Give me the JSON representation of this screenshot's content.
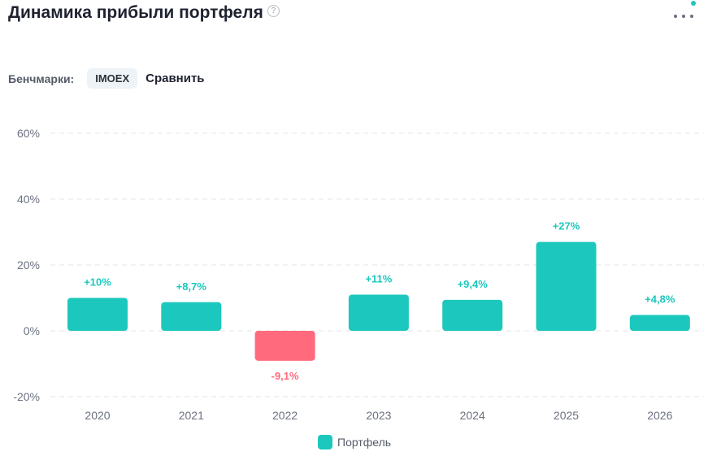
{
  "header": {
    "title": "Динамика прибыли портфеля",
    "help_glyph": "?"
  },
  "benchmarks": {
    "label": "Бенчмарки:",
    "chip": "IMOEX",
    "compare": "Сравнить"
  },
  "colors": {
    "positive": "#1cc8bd",
    "negative": "#ff6b7d",
    "grid": "#e3e6ea",
    "text": "#1f2230"
  },
  "chart_data": {
    "type": "bar",
    "title": "Динамика прибыли портфеля",
    "categories": [
      "2020",
      "2021",
      "2022",
      "2023",
      "2024",
      "2025",
      "2026"
    ],
    "series": [
      {
        "name": "Портфель",
        "values": [
          10,
          8.7,
          -9.1,
          11,
          9.4,
          27,
          4.8
        ],
        "labels": [
          "+10%",
          "+8,7%",
          "-9,1%",
          "+11%",
          "+9,4%",
          "+27%",
          "+4,8%"
        ]
      }
    ],
    "ylim": [
      -20,
      60
    ],
    "yticks": [
      60,
      40,
      20,
      0,
      -20
    ],
    "ytick_labels": [
      "60%",
      "40%",
      "20%",
      "0%",
      "-20%"
    ],
    "grid": true,
    "legend": "bottom-center"
  }
}
